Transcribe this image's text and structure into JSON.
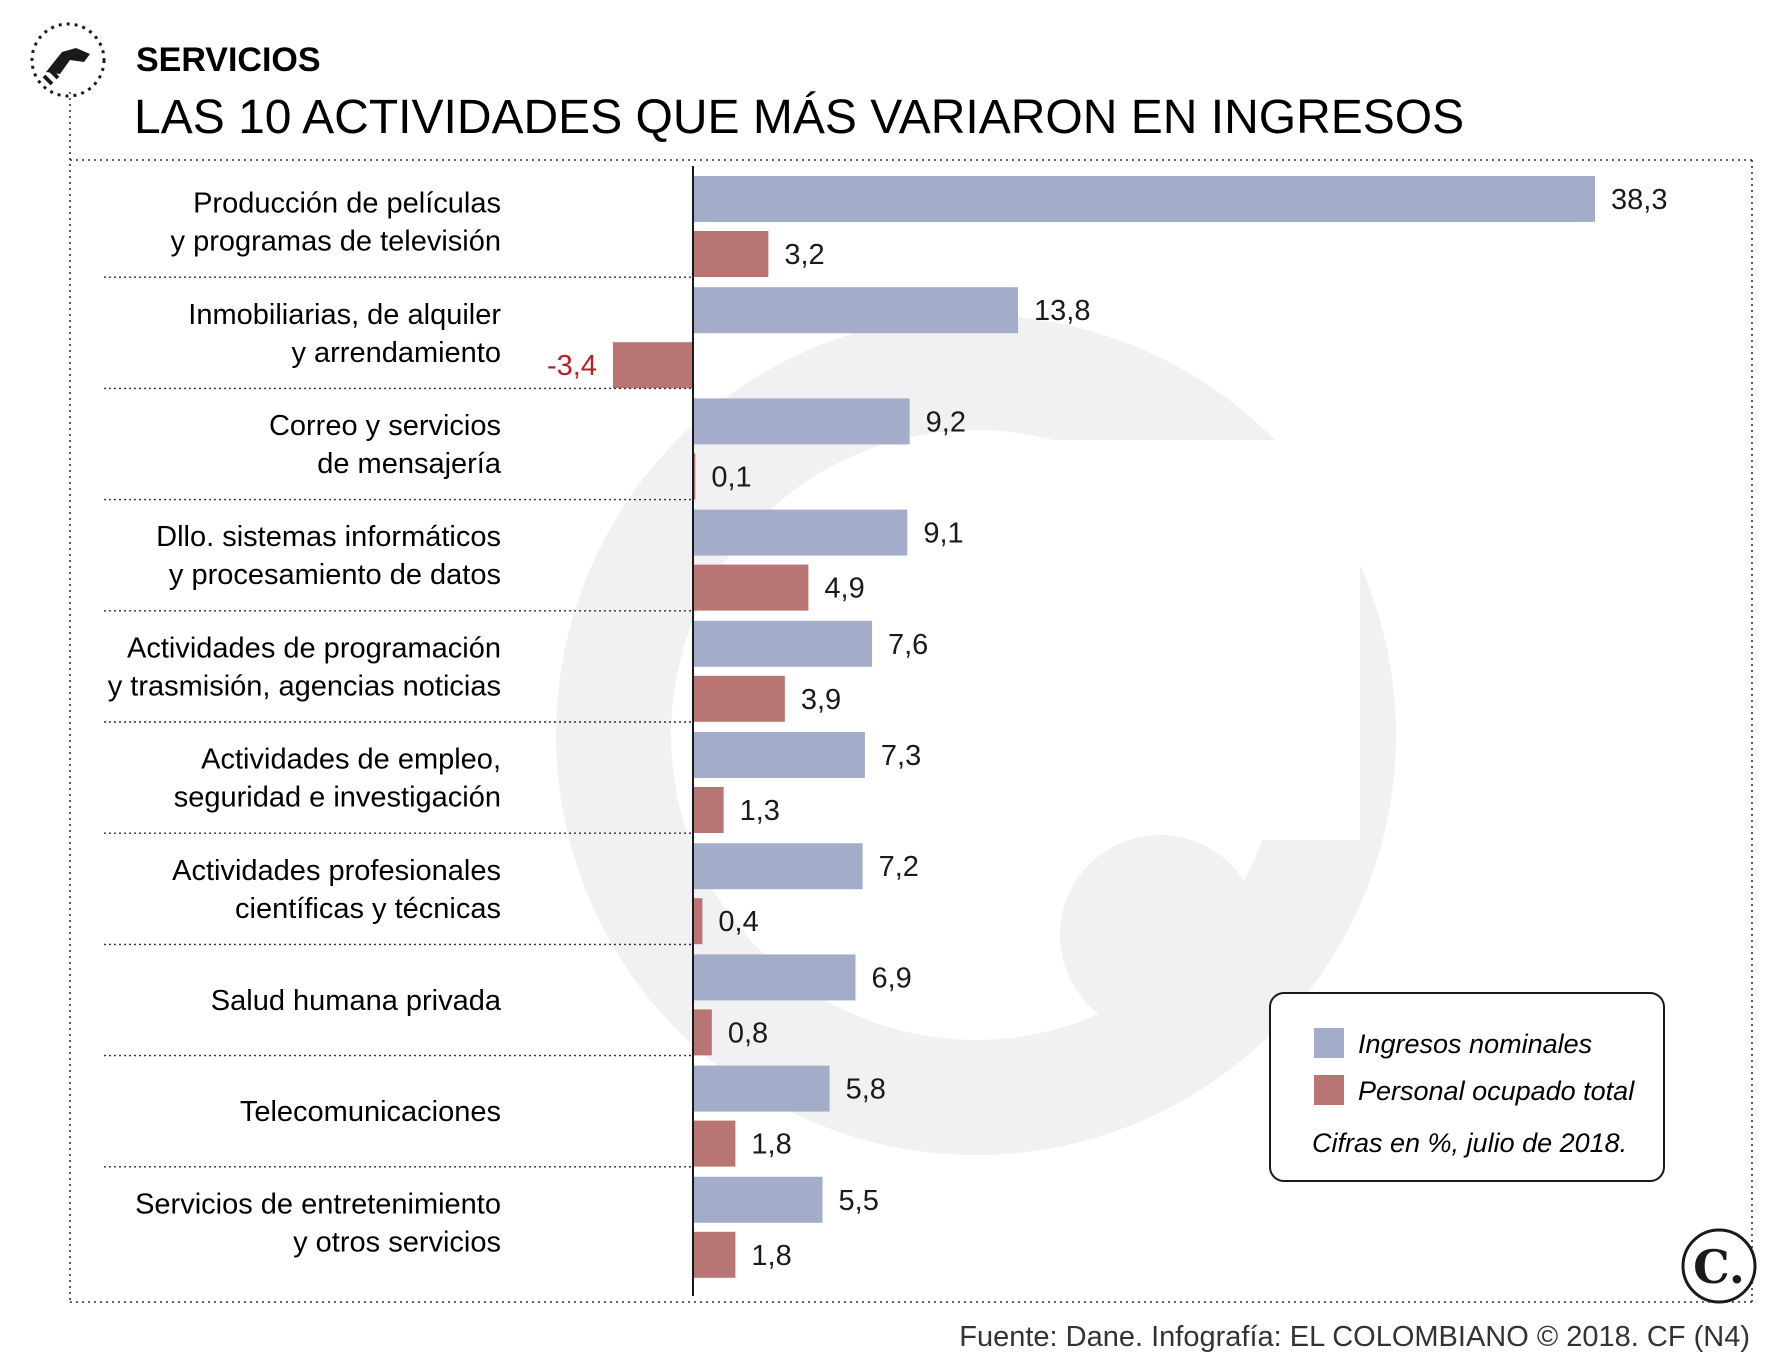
{
  "header": {
    "section": "SERVICIOS",
    "title": "LAS 10 ACTIVIDADES QUE MÁS VARIARON EN INGRESOS"
  },
  "icons": {
    "section_icon": "handshake-icon",
    "logo": "el-colombiano-c-logo"
  },
  "logo_text": "C.",
  "chart_data": {
    "type": "bar",
    "orientation": "horizontal",
    "categories": [
      [
        "Producción de películas",
        "y programas de televisión"
      ],
      [
        "Inmobiliarias, de alquiler",
        "y arrendamiento"
      ],
      [
        "Correo y servicios",
        "de mensajería"
      ],
      [
        "Dllo. sistemas informáticos",
        "y procesamiento de datos"
      ],
      [
        "Actividades de programación",
        "y trasmisión, agencias noticias"
      ],
      [
        "Actividades de empleo,",
        "seguridad e investigación"
      ],
      [
        "Actividades profesionales",
        "científicas y técnicas"
      ],
      [
        "Salud humana privada"
      ],
      [
        "Telecomunicaciones"
      ],
      [
        "Servicios de entretenimiento",
        "y otros servicios"
      ]
    ],
    "series": [
      {
        "name": "Ingresos nominales",
        "color": "#a3adc9",
        "values": [
          38.3,
          13.8,
          9.2,
          9.1,
          7.6,
          7.3,
          7.2,
          6.9,
          5.8,
          5.5
        ],
        "labels": [
          "38,3",
          "13,8",
          "9,2",
          "9,1",
          "7,6",
          "7,3",
          "7,2",
          "6,9",
          "5,8",
          "5,5"
        ]
      },
      {
        "name": "Personal ocupado total",
        "color": "#b97573",
        "values": [
          3.2,
          -3.4,
          0.1,
          4.9,
          3.9,
          1.3,
          0.4,
          0.8,
          1.8,
          1.8
        ],
        "labels": [
          "3,2",
          "-3,4",
          "0,1",
          "4,9",
          "3,9",
          "1,3",
          "0,4",
          "0,8",
          "1,8",
          "1,8"
        ]
      }
    ],
    "negative_label_color": "#b22222",
    "xlim": [
      -3.4,
      38.3
    ],
    "note": "Cifras en %, julio de 2018."
  },
  "footer": {
    "source": "Fuente: Dane. Infografía: EL COLOMBIANO © 2018. CF (N4)"
  }
}
